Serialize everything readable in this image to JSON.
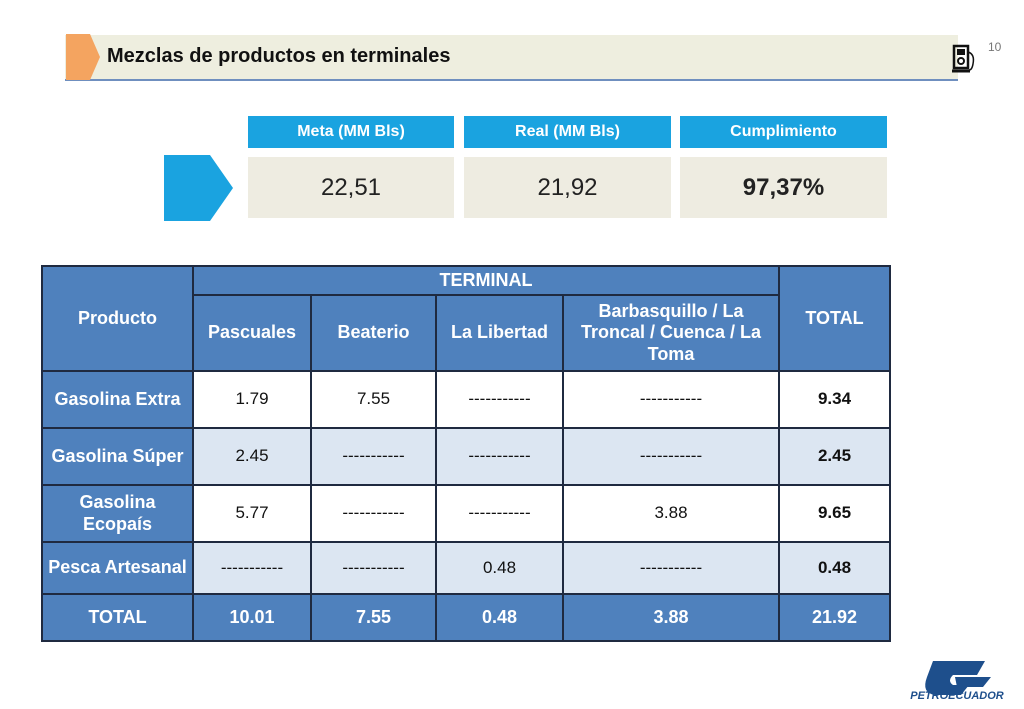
{
  "slide_number": "10",
  "title": "Mezclas de productos en terminales",
  "kpis": [
    {
      "label": "Meta (MM Bls)",
      "value": "22,51"
    },
    {
      "label": "Real (MM Bls)",
      "value": "21,92"
    },
    {
      "label": "Cumplimiento",
      "value": "97,37%"
    }
  ],
  "table": {
    "product_header": "Producto",
    "group_header": "TERMINAL",
    "total_header": "TOTAL",
    "columns": [
      "Pascuales",
      "Beaterio",
      "La Libertad",
      "Barbasquillo / La Troncal / Cuenca / La Toma"
    ],
    "rows": [
      [
        "Gasolina Extra",
        "1.79",
        "7.55",
        "-----------",
        "-----------",
        "9.34"
      ],
      [
        "Gasolina Súper",
        "2.45",
        "-----------",
        "-----------",
        "-----------",
        "2.45"
      ],
      [
        "Gasolina Ecopaís",
        "5.77",
        "-----------",
        "-----------",
        "3.88",
        "9.65"
      ],
      [
        "Pesca Artesanal",
        "-----------",
        "-----------",
        "0.48",
        "-----------",
        "0.48"
      ],
      [
        "TOTAL",
        "10.01",
        "7.55",
        "0.48",
        "3.88",
        "21.92"
      ]
    ]
  },
  "logo": "PETROECUADOR"
}
